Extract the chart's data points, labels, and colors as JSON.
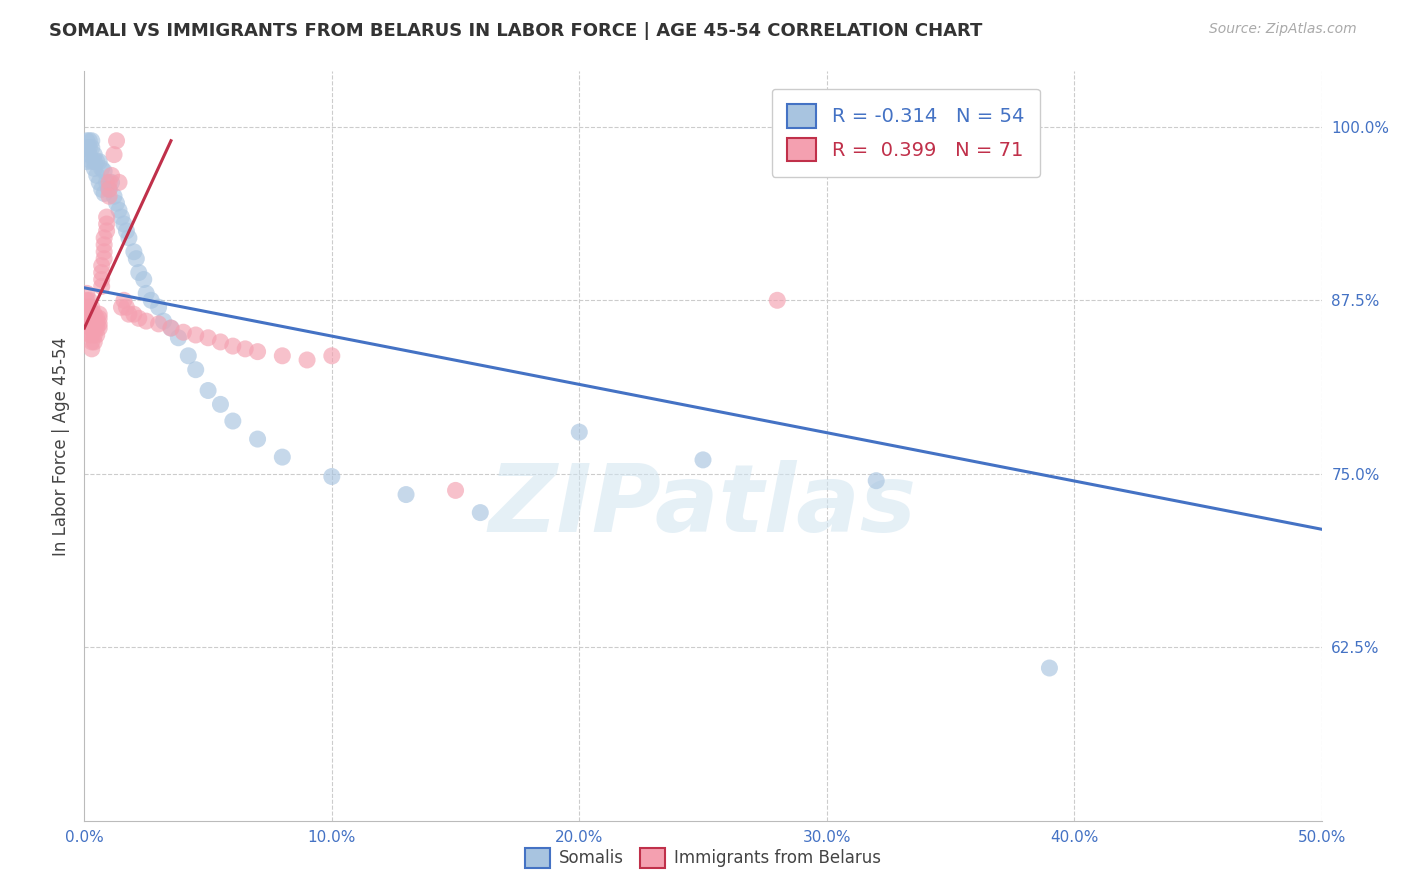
{
  "title": "SOMALI VS IMMIGRANTS FROM BELARUS IN LABOR FORCE | AGE 45-54 CORRELATION CHART",
  "source": "Source: ZipAtlas.com",
  "ylabel": "In Labor Force | Age 45-54",
  "xlim": [
    0.0,
    0.5
  ],
  "ylim": [
    0.5,
    1.04
  ],
  "xticks": [
    0.0,
    0.1,
    0.2,
    0.3,
    0.4,
    0.5
  ],
  "xticklabels": [
    "0.0%",
    "10.0%",
    "20.0%",
    "30.0%",
    "40.0%",
    "50.0%"
  ],
  "ytick_positions": [
    0.625,
    0.75,
    0.875,
    1.0
  ],
  "yticklabels_right": [
    "62.5%",
    "75.0%",
    "87.5%",
    "100.0%"
  ],
  "grid_color": "#cccccc",
  "background_color": "#ffffff",
  "somali_color": "#a8c4e0",
  "belarus_color": "#f4a0b0",
  "somali_line_color": "#4472c4",
  "belarus_line_color": "#c0304a",
  "legend_somali_R": "-0.314",
  "legend_somali_N": "54",
  "legend_belarus_R": "0.399",
  "legend_belarus_N": "71",
  "watermark": "ZIPatlas",
  "somali_scatter_x": [
    0.001,
    0.001,
    0.001,
    0.002,
    0.002,
    0.002,
    0.003,
    0.003,
    0.003,
    0.004,
    0.004,
    0.004,
    0.005,
    0.005,
    0.006,
    0.006,
    0.007,
    0.007,
    0.008,
    0.008,
    0.009,
    0.01,
    0.011,
    0.012,
    0.013,
    0.014,
    0.015,
    0.016,
    0.017,
    0.018,
    0.02,
    0.021,
    0.022,
    0.024,
    0.025,
    0.027,
    0.03,
    0.032,
    0.035,
    0.038,
    0.042,
    0.045,
    0.05,
    0.055,
    0.06,
    0.07,
    0.08,
    0.1,
    0.13,
    0.16,
    0.2,
    0.25,
    0.32,
    0.39
  ],
  "somali_scatter_y": [
    0.99,
    0.985,
    0.975,
    0.99,
    0.985,
    0.98,
    0.99,
    0.985,
    0.975,
    0.98,
    0.975,
    0.97,
    0.975,
    0.965,
    0.975,
    0.96,
    0.97,
    0.955,
    0.968,
    0.952,
    0.96,
    0.955,
    0.96,
    0.95,
    0.945,
    0.94,
    0.935,
    0.93,
    0.925,
    0.92,
    0.91,
    0.905,
    0.895,
    0.89,
    0.88,
    0.875,
    0.87,
    0.86,
    0.855,
    0.848,
    0.835,
    0.825,
    0.81,
    0.8,
    0.788,
    0.775,
    0.762,
    0.748,
    0.735,
    0.722,
    0.78,
    0.76,
    0.745,
    0.61
  ],
  "belarus_scatter_x": [
    0.001,
    0.001,
    0.001,
    0.001,
    0.001,
    0.002,
    0.002,
    0.002,
    0.002,
    0.002,
    0.002,
    0.003,
    0.003,
    0.003,
    0.003,
    0.003,
    0.003,
    0.003,
    0.004,
    0.004,
    0.004,
    0.004,
    0.004,
    0.004,
    0.005,
    0.005,
    0.005,
    0.005,
    0.006,
    0.006,
    0.006,
    0.006,
    0.007,
    0.007,
    0.007,
    0.007,
    0.008,
    0.008,
    0.008,
    0.008,
    0.009,
    0.009,
    0.009,
    0.01,
    0.01,
    0.01,
    0.011,
    0.012,
    0.013,
    0.014,
    0.015,
    0.016,
    0.017,
    0.018,
    0.02,
    0.022,
    0.025,
    0.03,
    0.035,
    0.04,
    0.045,
    0.05,
    0.055,
    0.06,
    0.065,
    0.07,
    0.08,
    0.09,
    0.1,
    0.15,
    0.28
  ],
  "belarus_scatter_y": [
    0.88,
    0.875,
    0.87,
    0.865,
    0.86,
    0.875,
    0.87,
    0.865,
    0.86,
    0.855,
    0.85,
    0.87,
    0.865,
    0.86,
    0.855,
    0.85,
    0.845,
    0.84,
    0.865,
    0.862,
    0.858,
    0.855,
    0.85,
    0.845,
    0.862,
    0.858,
    0.855,
    0.85,
    0.865,
    0.862,
    0.858,
    0.855,
    0.9,
    0.895,
    0.89,
    0.885,
    0.92,
    0.915,
    0.91,
    0.905,
    0.935,
    0.93,
    0.925,
    0.96,
    0.955,
    0.95,
    0.965,
    0.98,
    0.99,
    0.96,
    0.87,
    0.875,
    0.87,
    0.865,
    0.865,
    0.862,
    0.86,
    0.858,
    0.855,
    0.852,
    0.85,
    0.848,
    0.845,
    0.842,
    0.84,
    0.838,
    0.835,
    0.832,
    0.835,
    0.738,
    0.875
  ],
  "somali_trendline_x": [
    0.0,
    0.5
  ],
  "somali_trendline_y": [
    0.884,
    0.71
  ],
  "belarus_trendline_x": [
    0.0,
    0.035
  ],
  "belarus_trendline_y": [
    0.855,
    0.99
  ]
}
